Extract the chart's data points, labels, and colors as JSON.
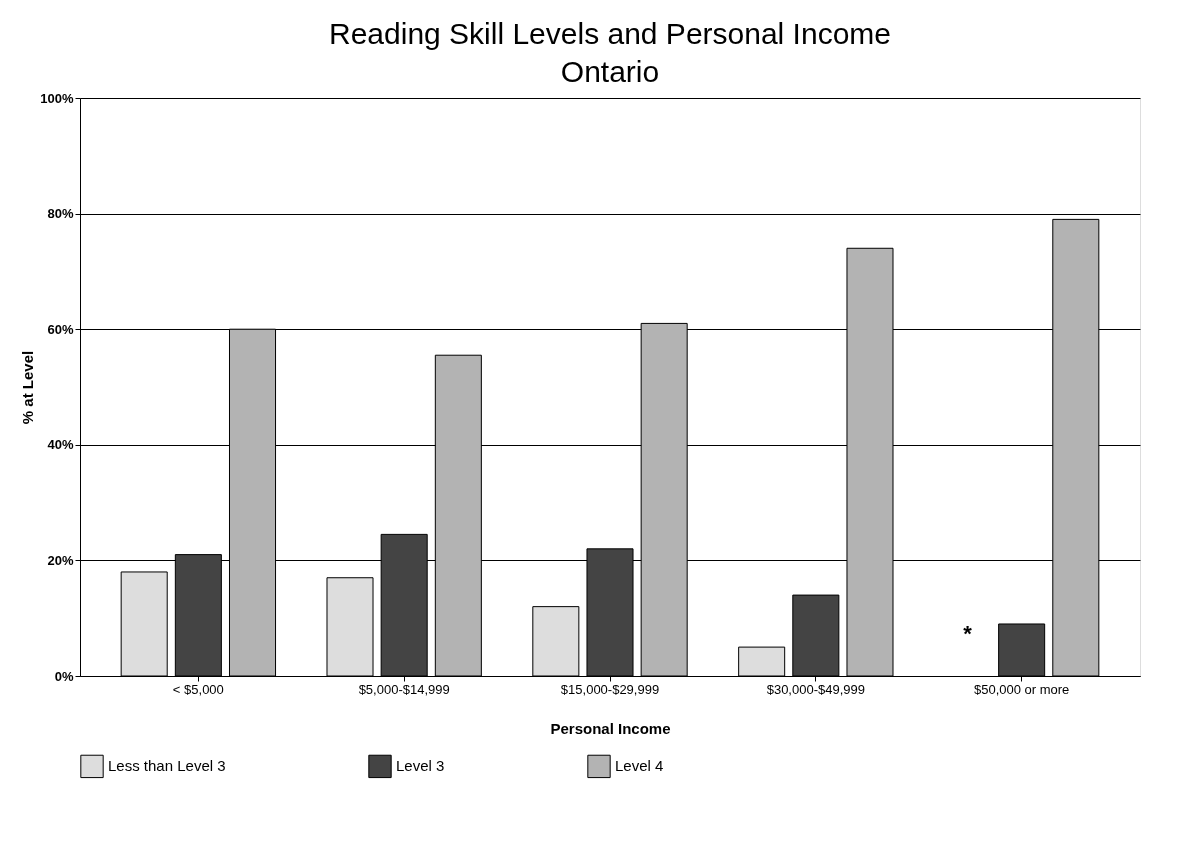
{
  "chart_data": {
    "type": "bar",
    "title": "Reading Skill Levels and Personal Income",
    "subtitle": "Ontario",
    "xlabel": "Personal Income",
    "ylabel": "% at Level",
    "categories": [
      "< $5,000",
      "$5,000-$14,999",
      "$15,000-$29,999",
      "$30,000-$49,999",
      "$50,000 or more"
    ],
    "series": [
      {
        "name": "Less than Level 3",
        "color": "#dddddd",
        "values": [
          18,
          17,
          12,
          5,
          null
        ]
      },
      {
        "name": "Level 3",
        "color": "#444444",
        "values": [
          21,
          24.5,
          22,
          14,
          9
        ]
      },
      {
        "name": "Level 4",
        "color": "#b3b3b3",
        "values": [
          60,
          55.5,
          61,
          74,
          79
        ]
      }
    ],
    "ylim": [
      0,
      100
    ],
    "yticks": [
      {
        "value": 0,
        "label": "0%"
      },
      {
        "value": 20,
        "label": "20%"
      },
      {
        "value": 40,
        "label": "40%"
      },
      {
        "value": 60,
        "label": "60%"
      },
      {
        "value": 80,
        "label": "80%"
      },
      {
        "value": 100,
        "label": "100%"
      }
    ],
    "annotations": [
      "*"
    ],
    "grid": "y",
    "legend": "bottom"
  }
}
